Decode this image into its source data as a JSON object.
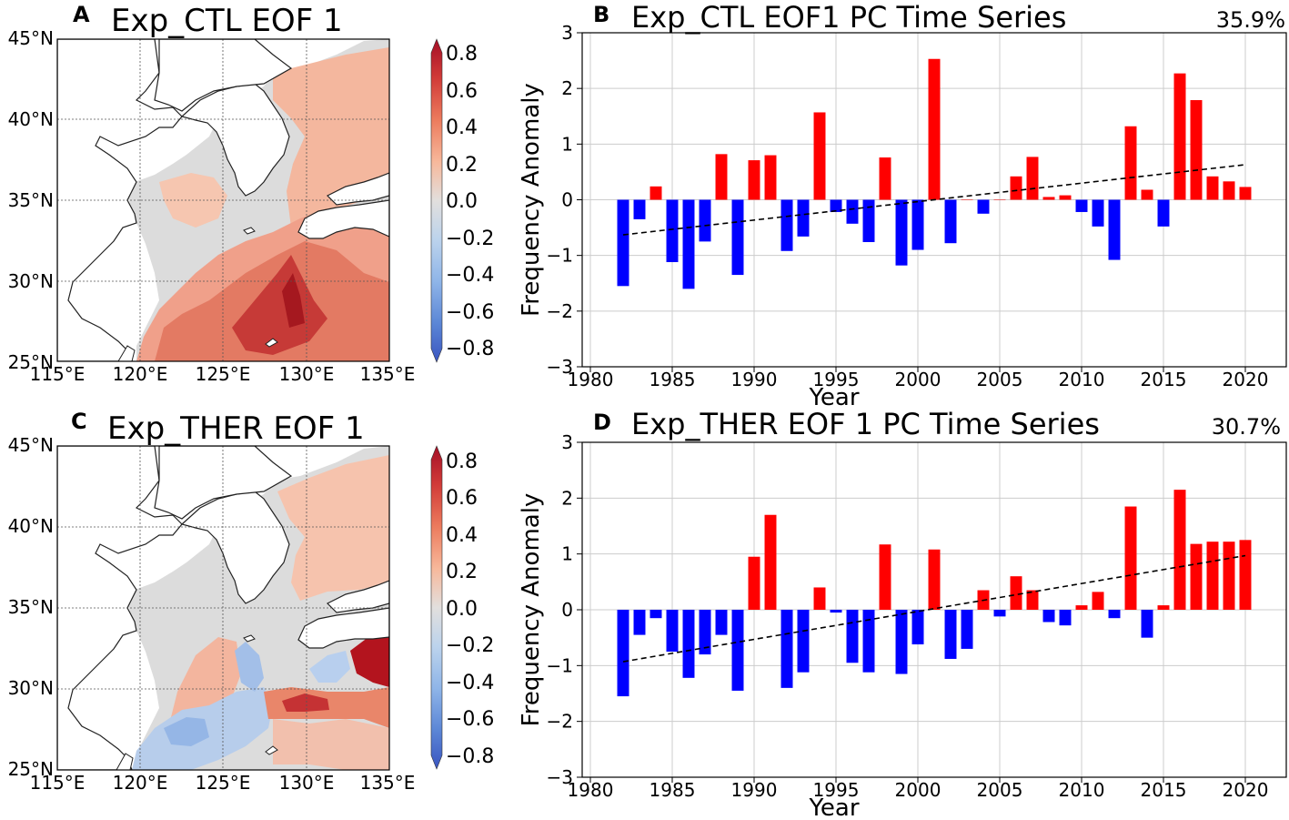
{
  "panels": {
    "A": {
      "letter": "A",
      "title": "Exp_CTL EOF 1"
    },
    "B": {
      "letter": "B",
      "title": "Exp_CTL EOF1 PC Time Series",
      "percent": "35.9%"
    },
    "C": {
      "letter": "C",
      "title": "Exp_THER EOF 1"
    },
    "D": {
      "letter": "D",
      "title": "Exp_THER EOF 1 PC Time Series",
      "percent": "30.7%"
    }
  },
  "map_axes": {
    "lat_labels": [
      "45°N",
      "40°N",
      "35°N",
      "30°N",
      "25°N"
    ],
    "lon_labels": [
      "115°E",
      "120°E",
      "125°E",
      "130°E",
      "135°E"
    ]
  },
  "colorbar": {
    "labels": [
      "0.8",
      "0.6",
      "0.4",
      "0.2",
      "0.0",
      "−0.2",
      "−0.4",
      "−0.6",
      "−0.8"
    ],
    "colors": [
      "#b2182b",
      "#d6604d",
      "#f4a582",
      "#fddbc7",
      "#dddddd",
      "#d1e5f0",
      "#92c5de",
      "#4393c3",
      "#2166ac"
    ]
  },
  "colors": {
    "positive_bar": "#ff0000",
    "negative_bar": "#0000ff",
    "trend": "#000000",
    "grid": "#cccccc",
    "land": "#ffffff",
    "coast": "#222222"
  },
  "chart_data": [
    {
      "panel": "B",
      "type": "bar",
      "title": "Exp_CTL EOF1 PC Time Series",
      "xlabel": "Year",
      "ylabel": "Frequency Anomaly",
      "xlim": [
        1979.5,
        2022.5
      ],
      "ylim": [
        -3,
        3
      ],
      "xticks": [
        1980,
        1985,
        1990,
        1995,
        2000,
        2005,
        2010,
        2015,
        2020
      ],
      "yticks": [
        -3,
        -2,
        -1,
        0,
        1,
        2,
        3
      ],
      "x": [
        1982,
        1983,
        1984,
        1985,
        1986,
        1987,
        1988,
        1989,
        1990,
        1991,
        1992,
        1993,
        1994,
        1995,
        1996,
        1997,
        1998,
        1999,
        2000,
        2001,
        2002,
        2003,
        2004,
        2005,
        2006,
        2007,
        2008,
        2009,
        2010,
        2011,
        2012,
        2013,
        2014,
        2015,
        2016,
        2017,
        2018,
        2019,
        2020
      ],
      "values": [
        -1.55,
        -0.35,
        0.24,
        -1.12,
        -1.6,
        -0.75,
        0.82,
        -1.35,
        0.71,
        0.8,
        -0.92,
        -0.66,
        1.57,
        -0.22,
        -0.43,
        -0.76,
        0.76,
        -1.18,
        -0.9,
        2.53,
        -0.78,
        0.0,
        -0.25,
        0.0,
        0.42,
        0.77,
        0.05,
        0.08,
        -0.22,
        -0.48,
        -1.08,
        1.32,
        0.18,
        -0.48,
        2.27,
        1.79,
        0.42,
        0.33,
        0.23
      ],
      "trend": {
        "x": [
          1982,
          2020
        ],
        "y": [
          -0.63,
          0.63
        ]
      },
      "grid": true
    },
    {
      "panel": "D",
      "type": "bar",
      "title": "Exp_THER EOF 1 PC Time Series",
      "xlabel": "Year",
      "ylabel": "Frequency Anomaly",
      "xlim": [
        1979.5,
        2022.5
      ],
      "ylim": [
        -3,
        3
      ],
      "xticks": [
        1980,
        1985,
        1990,
        1995,
        2000,
        2005,
        2010,
        2015,
        2020
      ],
      "yticks": [
        -3,
        -2,
        -1,
        0,
        1,
        2,
        3
      ],
      "x": [
        1982,
        1983,
        1984,
        1985,
        1986,
        1987,
        1988,
        1989,
        1990,
        1991,
        1992,
        1993,
        1994,
        1995,
        1996,
        1997,
        1998,
        1999,
        2000,
        2001,
        2002,
        2003,
        2004,
        2005,
        2006,
        2007,
        2008,
        2009,
        2010,
        2011,
        2012,
        2013,
        2014,
        2015,
        2016,
        2017,
        2018,
        2019,
        2020
      ],
      "values": [
        -1.55,
        -0.45,
        -0.15,
        -0.75,
        -1.22,
        -0.8,
        -0.45,
        -1.45,
        0.95,
        1.7,
        -1.4,
        -1.12,
        0.4,
        -0.05,
        -0.95,
        -1.12,
        1.17,
        -1.15,
        -0.62,
        1.08,
        -0.88,
        -0.7,
        0.35,
        -0.12,
        0.6,
        0.35,
        -0.22,
        -0.28,
        0.08,
        0.32,
        -0.15,
        1.85,
        -0.5,
        0.08,
        2.15,
        1.18,
        1.22,
        1.22,
        1.25
      ],
      "trend": {
        "x": [
          1982,
          2020
        ],
        "y": [
          -0.93,
          0.97
        ]
      },
      "grid": true
    }
  ]
}
